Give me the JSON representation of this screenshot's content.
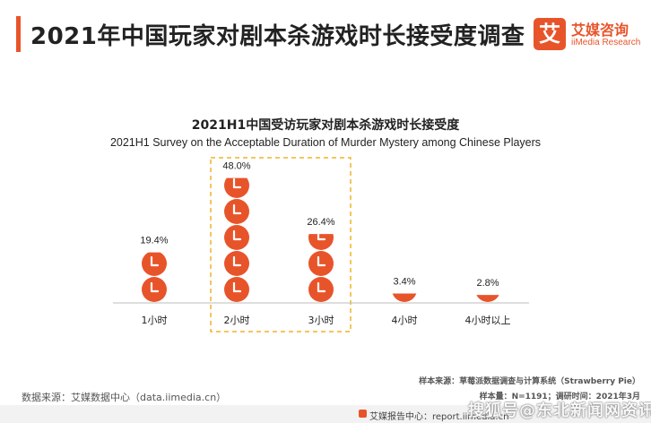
{
  "header": {
    "title": "2021年中国玩家对剧本杀游戏时长接受度调查"
  },
  "logo": {
    "mark": "艾",
    "name_cn": "艾媒咨询",
    "name_en": "iiMedia Research"
  },
  "chart_data": {
    "type": "bar",
    "title": "2021H1中国受访玩家对剧本杀游戏时长接受度",
    "subtitle": "2021H1 Survey on the Acceptable Duration of Murder Mystery among Chinese Players",
    "categories": [
      "1小时",
      "2小时",
      "3小时",
      "4小时",
      "4小时以上"
    ],
    "values": [
      19.4,
      48.0,
      26.4,
      3.4,
      2.8
    ],
    "value_labels": [
      "19.4%",
      "48.0%",
      "26.4%",
      "3.4%",
      "2.8%"
    ],
    "highlighted_categories": [
      "2小时",
      "3小时"
    ],
    "units_per_clock": 10,
    "colors": {
      "clock": "#e8542a",
      "highlight_box": "#f0b429",
      "axis": "#bdbdbd"
    }
  },
  "footer": {
    "source_left": "数据来源：艾媒数据中心（data.iimedia.cn）",
    "note_sample_source": "样本来源：草莓派数据调查与计算系统（Strawberry Pie）",
    "note_sample_size": "样本量：N=1191；调研时间：2021年3月",
    "report_center": "艾媒报告中心：report.iimedia.cn"
  },
  "watermark": "搜狐号@东北新闻网资讯"
}
